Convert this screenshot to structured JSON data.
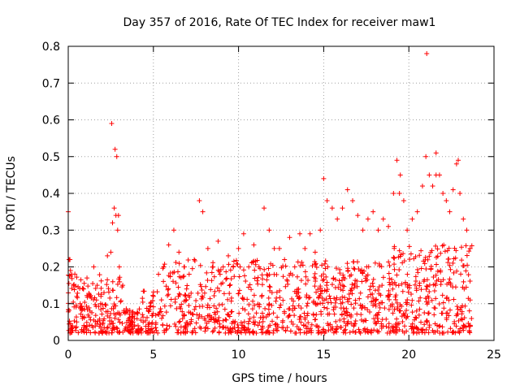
{
  "chart_data": {
    "type": "scatter",
    "title": "Day 357 of 2016, Rate Of TEC Index for receiver maw1",
    "xlabel": "GPS time / hours",
    "ylabel": "ROTI / TECUs",
    "xlim": [
      0,
      25
    ],
    "ylim": [
      0,
      0.8
    ],
    "xticks": [
      "0",
      "5",
      "10",
      "15",
      "20",
      "25"
    ],
    "yticks": [
      "0",
      "0.1",
      "0.2",
      "0.3",
      "0.4",
      "0.5",
      "0.6",
      "0.7",
      "0.8"
    ],
    "grid": true,
    "marker": "+",
    "color": "#ff0000",
    "series": [
      {
        "x": [
          0.0,
          0.1,
          0.2,
          0.3,
          0.5,
          0.7,
          0.9,
          1.1,
          1.3,
          1.5,
          1.7,
          1.9,
          2.1,
          2.3,
          2.5,
          2.6,
          2.7,
          2.8,
          2.9,
          3.0,
          3.2,
          3.5,
          3.8,
          4.1,
          4.4,
          4.7,
          5.0,
          5.3,
          5.6,
          5.9,
          6.2,
          6.5,
          6.8,
          7.1,
          7.4,
          7.7,
          7.9,
          8.2,
          8.5,
          8.8,
          9.1,
          9.4,
          9.7,
          10.0,
          10.3,
          10.6,
          10.9,
          11.2,
          11.5,
          11.8,
          12.1,
          12.4,
          12.7,
          13.0,
          13.3,
          13.6,
          13.9,
          14.2,
          14.5,
          14.8,
          15.0,
          15.2,
          15.5,
          15.8,
          16.1,
          16.4,
          16.7,
          17.0,
          17.3,
          17.6,
          17.9,
          18.2,
          18.5,
          18.8,
          19.1,
          19.3,
          19.5,
          19.7,
          19.9,
          20.2,
          20.5,
          20.8,
          21.0,
          21.2,
          21.4,
          21.6,
          21.8,
          22.0,
          22.2,
          22.4,
          22.6,
          22.8,
          23.0,
          23.2,
          23.4,
          23.6,
          0.05,
          2.55,
          2.75,
          2.85,
          2.95,
          21.05,
          21.6,
          22.9,
          19.45
        ],
        "y": [
          0.35,
          0.22,
          0.18,
          0.15,
          0.12,
          0.1,
          0.14,
          0.17,
          0.12,
          0.2,
          0.15,
          0.1,
          0.13,
          0.23,
          0.24,
          0.32,
          0.36,
          0.34,
          0.3,
          0.2,
          0.15,
          0.08,
          0.05,
          0.04,
          0.05,
          0.08,
          0.12,
          0.18,
          0.2,
          0.26,
          0.3,
          0.24,
          0.2,
          0.18,
          0.22,
          0.38,
          0.35,
          0.25,
          0.2,
          0.27,
          0.2,
          0.23,
          0.2,
          0.25,
          0.29,
          0.2,
          0.26,
          0.2,
          0.36,
          0.3,
          0.25,
          0.25,
          0.22,
          0.28,
          0.2,
          0.29,
          0.25,
          0.29,
          0.24,
          0.3,
          0.44,
          0.38,
          0.36,
          0.33,
          0.36,
          0.41,
          0.38,
          0.34,
          0.3,
          0.33,
          0.35,
          0.3,
          0.33,
          0.31,
          0.4,
          0.49,
          0.45,
          0.38,
          0.3,
          0.33,
          0.35,
          0.42,
          0.5,
          0.45,
          0.42,
          0.51,
          0.45,
          0.4,
          0.38,
          0.35,
          0.41,
          0.48,
          0.4,
          0.33,
          0.3,
          0.25,
          0.22,
          0.59,
          0.52,
          0.5,
          0.34,
          0.78,
          0.45,
          0.49,
          0.4
        ]
      }
    ]
  }
}
